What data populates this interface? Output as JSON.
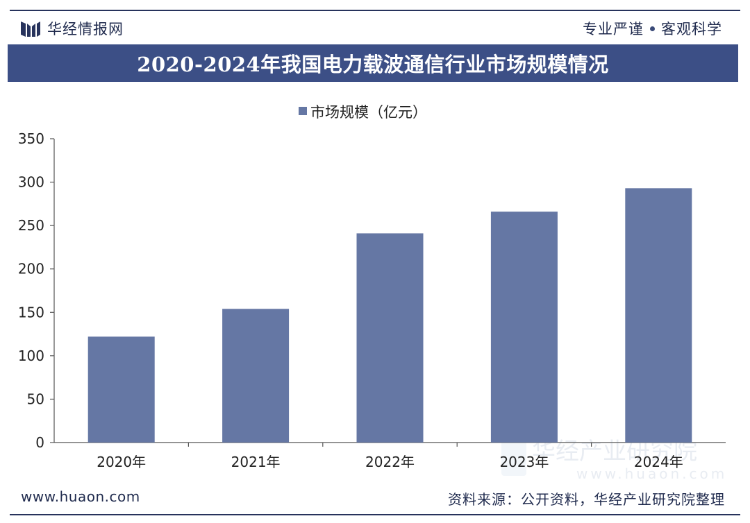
{
  "header": {
    "brand_name": "华经情报网",
    "slogan_left": "专业严谨",
    "slogan_right": "客观科学"
  },
  "title": "2020-2024年我国电力载波通信行业市场规模情况",
  "footer": {
    "url": "www.huaon.com",
    "source": "资料来源：公开资料，华经产业研究院整理"
  },
  "watermark": {
    "text": "华经产业研究院",
    "url": "www.huaon.com"
  },
  "colors": {
    "bar": "#6577a4",
    "title_bg": "#3c4f86",
    "header_text": "#1f2a4d"
  },
  "chart_data": {
    "type": "bar",
    "title": "2020-2024年我国电力载波通信行业市场规模情况",
    "legend": "市场规模（亿元）",
    "legend_position": "top-center",
    "categories": [
      "2020年",
      "2021年",
      "2022年",
      "2023年",
      "2024年"
    ],
    "values": [
      122,
      154,
      241,
      266,
      293
    ],
    "ylim": [
      0,
      350
    ],
    "yticks": [
      0,
      50,
      100,
      150,
      200,
      250,
      300,
      350
    ],
    "xlabel": "",
    "ylabel": "",
    "grid": false
  }
}
